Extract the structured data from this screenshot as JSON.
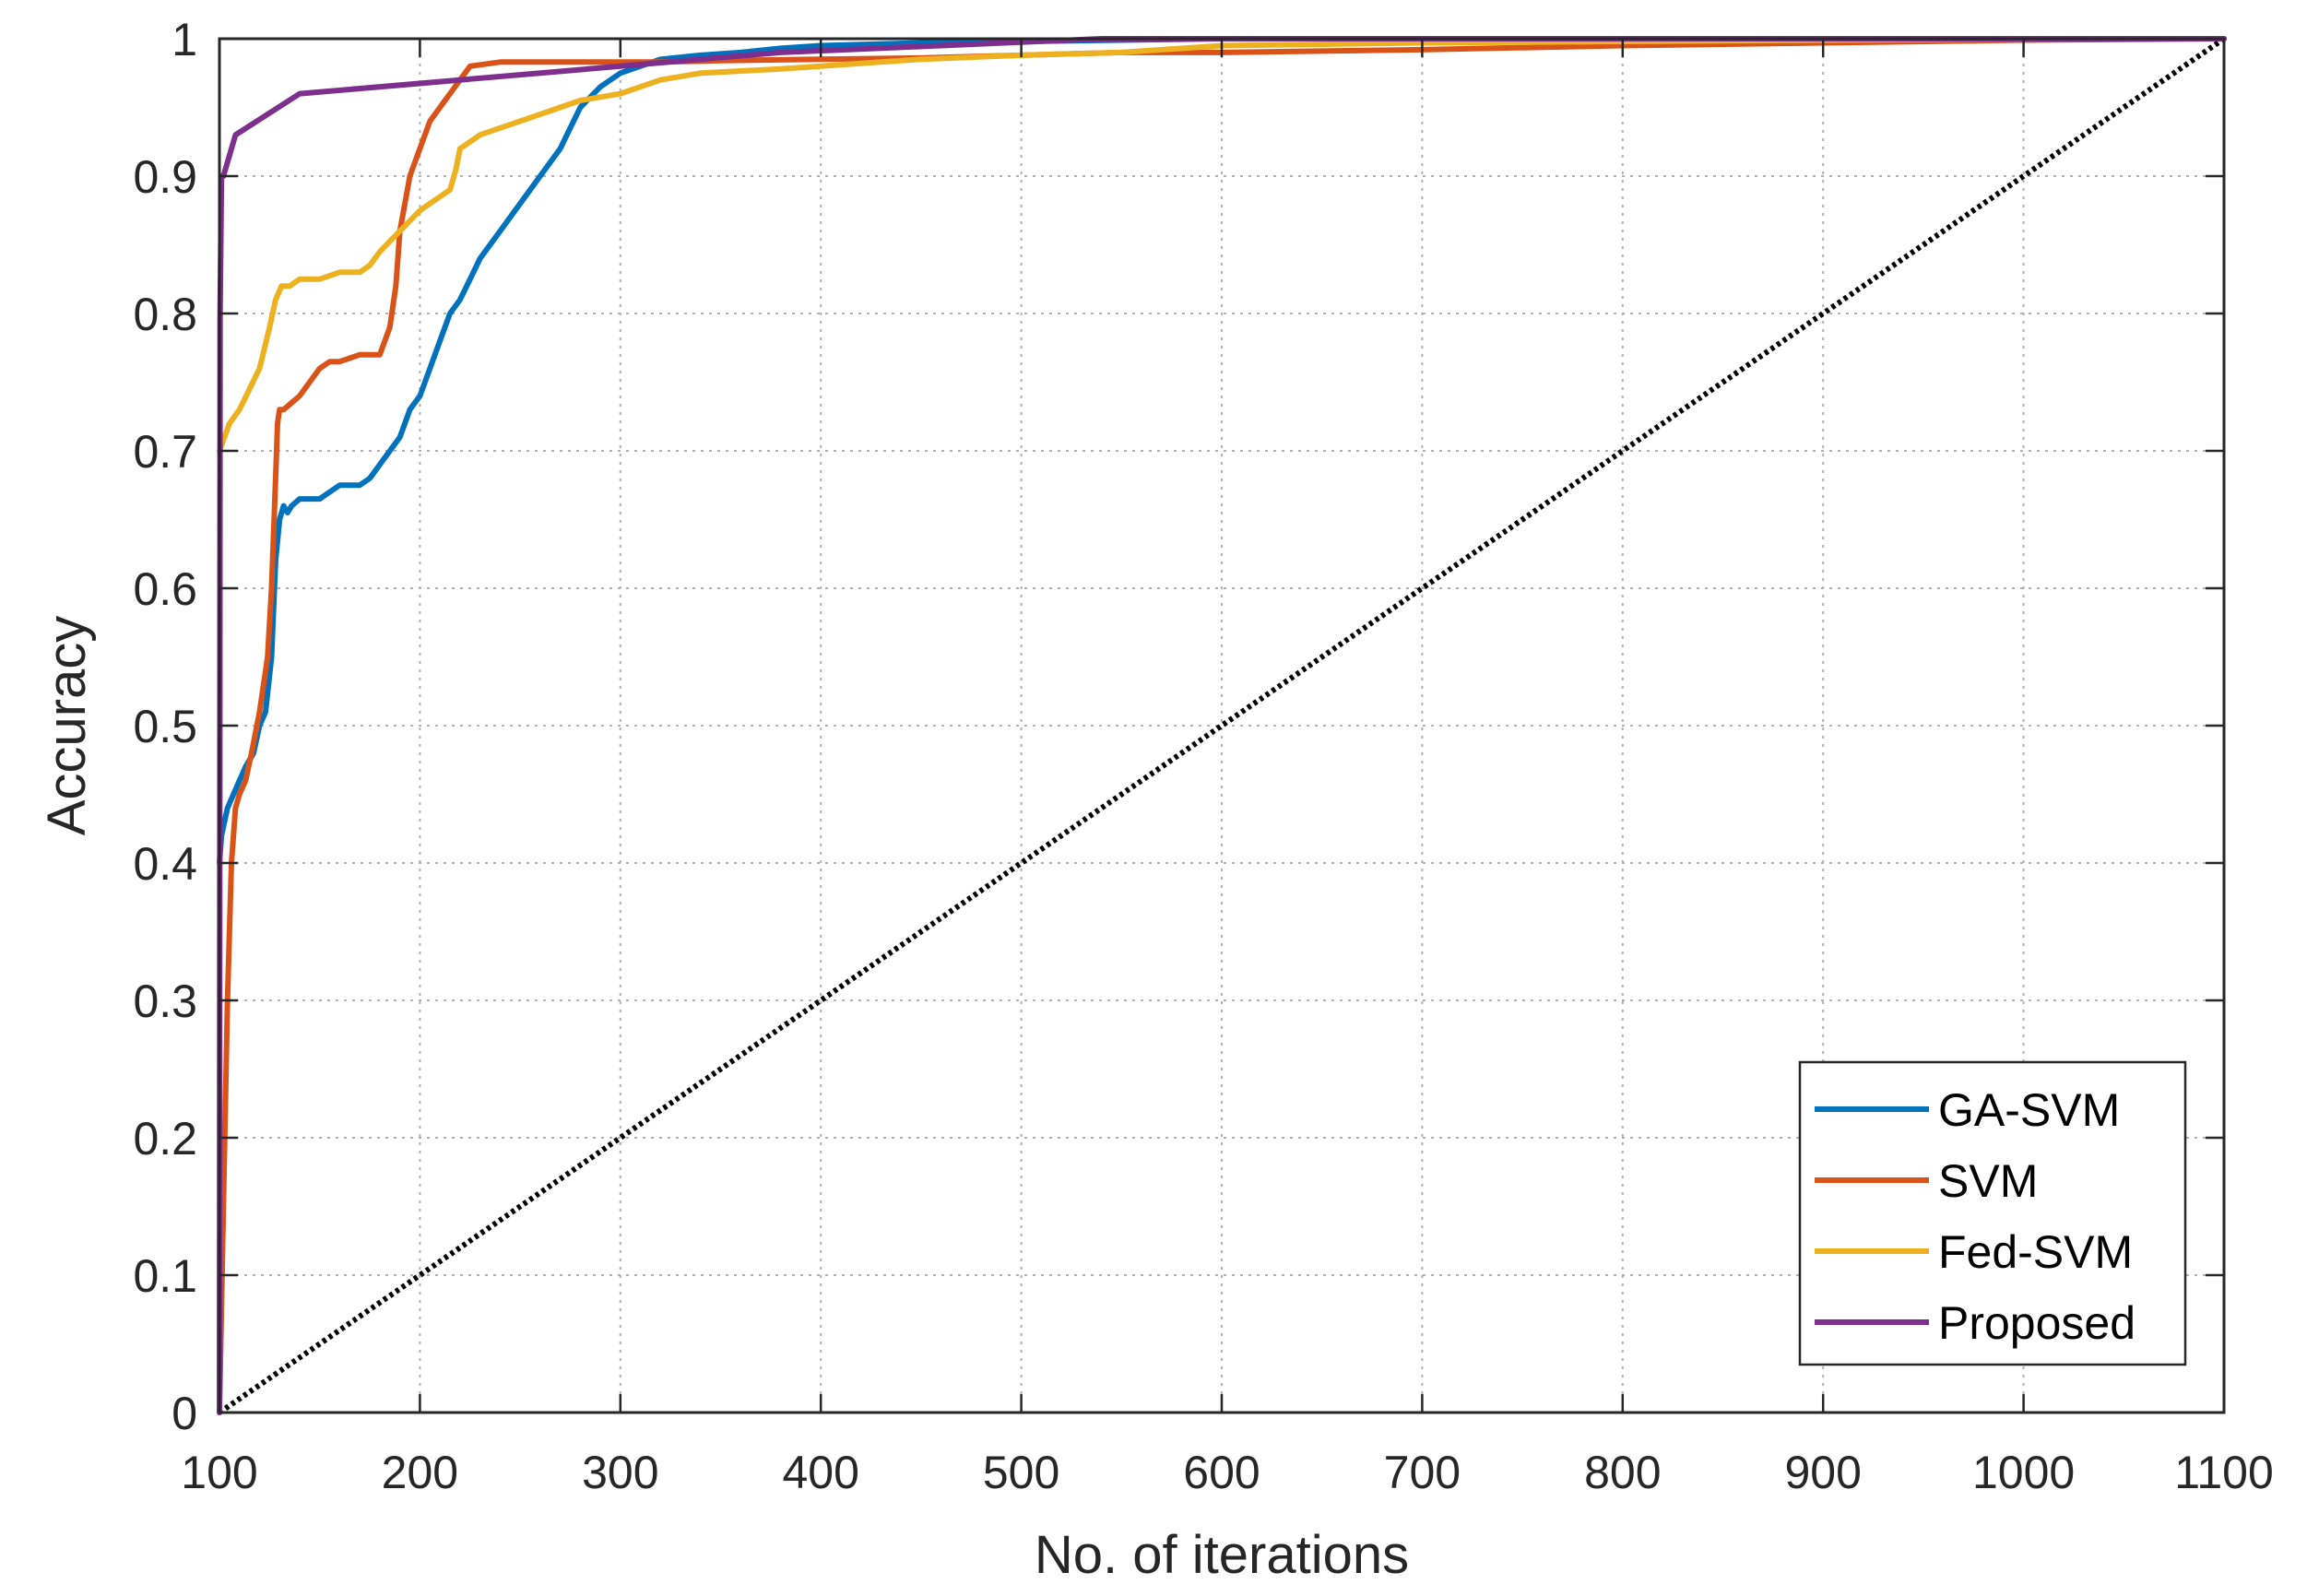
{
  "chart_data": {
    "type": "line",
    "title": "",
    "xlabel": "No. of iterations",
    "ylabel": "Accuracy",
    "xlim": [
      100,
      1100
    ],
    "ylim": [
      0,
      1
    ],
    "xticks": [
      100,
      200,
      300,
      400,
      500,
      600,
      700,
      800,
      900,
      1000,
      1100
    ],
    "yticks": [
      0,
      0.1,
      0.2,
      0.3,
      0.4,
      0.5,
      0.6,
      0.7,
      0.8,
      0.9,
      1
    ],
    "xtick_labels": [
      "100",
      "200",
      "300",
      "400",
      "500",
      "600",
      "700",
      "800",
      "900",
      "1000",
      "1100"
    ],
    "ytick_labels": [
      "0",
      "0.1",
      "0.2",
      "0.3",
      "0.4",
      "0.5",
      "0.6",
      "0.7",
      "0.8",
      "0.9",
      "1"
    ],
    "grid": true,
    "legend_position": "bottom-right",
    "series": [
      {
        "name": "GA-SVM",
        "color": "#0072BD",
        "x": [
          100,
          101,
          104,
          107,
          110,
          113,
          117,
          120,
          123,
          126,
          128,
          130,
          132,
          134,
          136,
          140,
          145,
          150,
          160,
          170,
          175,
          180,
          185,
          190,
          195,
          200,
          205,
          210,
          215,
          220,
          225,
          230,
          240,
          250,
          260,
          265,
          270,
          280,
          290,
          300,
          310,
          320,
          340,
          360,
          380,
          400,
          450,
          500,
          550,
          600,
          700,
          800,
          900,
          1000,
          1100
        ],
        "y": [
          0.4,
          0.42,
          0.44,
          0.45,
          0.46,
          0.47,
          0.48,
          0.5,
          0.51,
          0.55,
          0.62,
          0.65,
          0.66,
          0.655,
          0.66,
          0.665,
          0.665,
          0.665,
          0.675,
          0.675,
          0.68,
          0.69,
          0.7,
          0.71,
          0.73,
          0.74,
          0.76,
          0.78,
          0.8,
          0.81,
          0.825,
          0.84,
          0.86,
          0.88,
          0.9,
          0.91,
          0.92,
          0.95,
          0.965,
          0.975,
          0.98,
          0.985,
          0.988,
          0.99,
          0.993,
          0.995,
          0.997,
          0.998,
          0.999,
          1.0,
          1.0,
          1.0,
          1.0,
          1.0,
          1.0
        ]
      },
      {
        "name": "SVM",
        "color": "#D95319",
        "x": [
          100,
          102,
          104,
          106,
          108,
          110,
          113,
          116,
          120,
          124,
          126,
          128,
          129,
          130,
          132,
          136,
          140,
          145,
          150,
          155,
          160,
          170,
          180,
          185,
          188,
          190,
          195,
          200,
          205,
          210,
          215,
          220,
          225,
          240,
          260,
          300,
          320,
          350,
          400,
          450,
          500,
          550,
          600,
          700,
          800,
          900,
          1000,
          1100
        ],
        "y": [
          0.0,
          0.15,
          0.3,
          0.4,
          0.44,
          0.45,
          0.46,
          0.48,
          0.51,
          0.55,
          0.6,
          0.68,
          0.72,
          0.73,
          0.73,
          0.735,
          0.74,
          0.75,
          0.76,
          0.765,
          0.765,
          0.77,
          0.77,
          0.79,
          0.82,
          0.86,
          0.9,
          0.92,
          0.94,
          0.95,
          0.96,
          0.97,
          0.98,
          0.983,
          0.983,
          0.983,
          0.983,
          0.984,
          0.985,
          0.986,
          0.988,
          0.99,
          0.99,
          0.992,
          0.995,
          0.997,
          0.999,
          1.0
        ]
      },
      {
        "name": "Fed-SVM",
        "color": "#EDB120",
        "x": [
          100,
          105,
          110,
          115,
          120,
          125,
          128,
          131,
          135,
          140,
          145,
          150,
          160,
          170,
          175,
          180,
          190,
          200,
          210,
          215,
          218,
          220,
          225,
          230,
          240,
          250,
          260,
          280,
          300,
          320,
          340,
          380,
          400,
          450,
          500,
          550,
          600,
          700,
          800,
          900,
          1000,
          1100
        ],
        "y": [
          0.7,
          0.72,
          0.73,
          0.745,
          0.76,
          0.79,
          0.81,
          0.82,
          0.82,
          0.825,
          0.825,
          0.825,
          0.83,
          0.83,
          0.835,
          0.845,
          0.86,
          0.875,
          0.885,
          0.89,
          0.905,
          0.92,
          0.925,
          0.93,
          0.935,
          0.94,
          0.945,
          0.955,
          0.96,
          0.97,
          0.975,
          0.978,
          0.98,
          0.985,
          0.988,
          0.99,
          0.995,
          0.997,
          0.998,
          0.999,
          1.0,
          1.0
        ]
      },
      {
        "name": "Proposed",
        "color": "#7E2F8E",
        "x": [
          100,
          100.3,
          101,
          102,
          108,
          140,
          220,
          300,
          380,
          460,
          540,
          700,
          900,
          1100
        ],
        "y": [
          0.0,
          0.8,
          0.9,
          0.9,
          0.93,
          0.96,
          0.97,
          0.98,
          0.99,
          0.995,
          1.0,
          1.0,
          1.0,
          1.0
        ]
      },
      {
        "name": "",
        "color": "#000000",
        "dashed": true,
        "x": [
          100,
          1100
        ],
        "y": [
          0,
          1
        ]
      }
    ]
  }
}
